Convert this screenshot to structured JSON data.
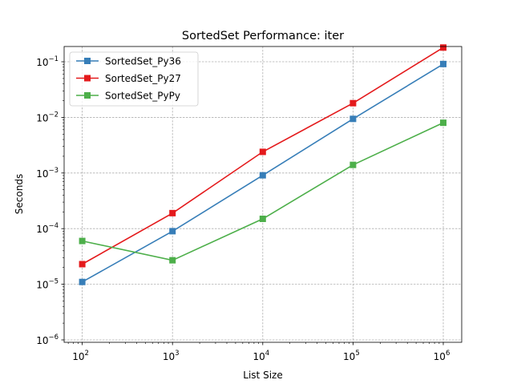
{
  "chart_data": {
    "type": "line",
    "title": "SortedSet Performance: iter",
    "xlabel": "List Size",
    "ylabel": "Seconds",
    "xscale": "log",
    "yscale": "log",
    "xlim": [
      63,
      1600000
    ],
    "ylim": [
      9.05e-07,
      0.188
    ],
    "grid": true,
    "legend_position": "upper-left",
    "x": [
      100,
      1000,
      10000,
      100000,
      1000000
    ],
    "x_ticks": [
      {
        "base": "10",
        "exp": "2",
        "value": 100
      },
      {
        "base": "10",
        "exp": "3",
        "value": 1000
      },
      {
        "base": "10",
        "exp": "4",
        "value": 10000
      },
      {
        "base": "10",
        "exp": "5",
        "value": 100000
      },
      {
        "base": "10",
        "exp": "6",
        "value": 1000000
      }
    ],
    "y_ticks": [
      {
        "base": "10",
        "exp": "−6",
        "value": 1e-06
      },
      {
        "base": "10",
        "exp": "−5",
        "value": 1e-05
      },
      {
        "base": "10",
        "exp": "−4",
        "value": 0.0001
      },
      {
        "base": "10",
        "exp": "−3",
        "value": 0.001
      },
      {
        "base": "10",
        "exp": "−2",
        "value": 0.01
      },
      {
        "base": "10",
        "exp": "−1",
        "value": 0.1
      }
    ],
    "series": [
      {
        "name": "SortedSet_Py36",
        "color": "#377eb8",
        "values": [
          1.1e-05,
          9e-05,
          0.00091,
          0.0094,
          0.091
        ]
      },
      {
        "name": "SortedSet_Py27",
        "color": "#e41a1c",
        "values": [
          2.3e-05,
          0.00019,
          0.0024,
          0.018,
          0.18
        ]
      },
      {
        "name": "SortedSet_PyPy",
        "color": "#4daf4a",
        "values": [
          6e-05,
          2.7e-05,
          0.00015,
          0.0014,
          0.008
        ]
      }
    ]
  }
}
